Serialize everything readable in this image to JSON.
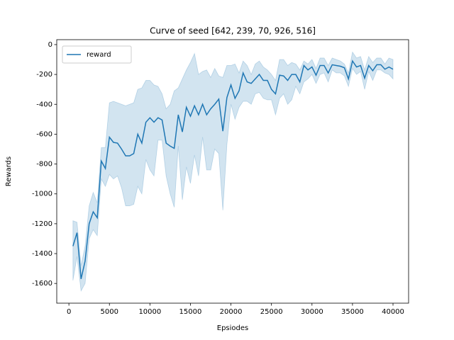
{
  "chart_data": {
    "type": "line",
    "title": "Curve of seed [642, 239, 70, 926, 516]",
    "xlabel": "Epsiodes",
    "ylabel": "Rewards",
    "x": [
      500,
      1000,
      1500,
      2000,
      2500,
      3000,
      3500,
      4000,
      4500,
      5000,
      5500,
      6000,
      6500,
      7000,
      7500,
      8000,
      8500,
      9000,
      9500,
      10000,
      10500,
      11000,
      11500,
      12000,
      12500,
      13000,
      13500,
      14000,
      14500,
      15000,
      15500,
      16000,
      16500,
      17000,
      17500,
      18000,
      18500,
      19000,
      19500,
      20000,
      20500,
      21000,
      21500,
      22000,
      22500,
      23000,
      23500,
      24000,
      24500,
      25000,
      25500,
      26000,
      26500,
      27000,
      27500,
      28000,
      28500,
      29000,
      29500,
      30000,
      30500,
      31000,
      31500,
      32000,
      32500,
      33000,
      33500,
      34000,
      34500,
      35000,
      35500,
      36000,
      36500,
      37000,
      37500,
      38000,
      38500,
      39000,
      39500,
      40000
    ],
    "series": [
      {
        "name": "reward",
        "color": "#1f77b4",
        "values": [
          -1350,
          -1260,
          -1570,
          -1450,
          -1200,
          -1120,
          -1160,
          -780,
          -830,
          -620,
          -655,
          -660,
          -700,
          -745,
          -745,
          -730,
          -600,
          -660,
          -520,
          -490,
          -520,
          -490,
          -505,
          -660,
          -680,
          -695,
          -470,
          -585,
          -420,
          -480,
          -410,
          -470,
          -400,
          -470,
          -430,
          -400,
          -365,
          -580,
          -355,
          -270,
          -360,
          -310,
          -190,
          -250,
          -260,
          -230,
          -200,
          -240,
          -240,
          -300,
          -330,
          -205,
          -210,
          -240,
          -200,
          -200,
          -250,
          -140,
          -170,
          -150,
          -205,
          -140,
          -140,
          -190,
          -135,
          -140,
          -145,
          -155,
          -230,
          -110,
          -150,
          -140,
          -225,
          -140,
          -175,
          -135,
          -135,
          -165,
          -150,
          -165
        ],
        "lower": [
          -1580,
          -1420,
          -1650,
          -1600,
          -1300,
          -1240,
          -1280,
          -900,
          -950,
          -870,
          -900,
          -880,
          -960,
          -1080,
          -1080,
          -1070,
          -950,
          -1000,
          -770,
          -840,
          -880,
          -640,
          -640,
          -880,
          -1000,
          -1090,
          -680,
          -1040,
          -820,
          -930,
          -740,
          -880,
          -620,
          -840,
          -840,
          -700,
          -730,
          -1110,
          -670,
          -400,
          -500,
          -420,
          -380,
          -380,
          -400,
          -330,
          -320,
          -360,
          -370,
          -370,
          -470,
          -360,
          -330,
          -400,
          -370,
          -280,
          -330,
          -250,
          -230,
          -200,
          -260,
          -200,
          -190,
          -250,
          -170,
          -190,
          -190,
          -210,
          -280,
          -160,
          -200,
          -180,
          -300,
          -180,
          -240,
          -170,
          -170,
          -190,
          -200,
          -230
        ],
        "upper": [
          -1180,
          -1190,
          -1480,
          -1350,
          -1080,
          -990,
          -1060,
          -690,
          -690,
          -390,
          -380,
          -390,
          -400,
          -410,
          -400,
          -390,
          -300,
          -290,
          -240,
          -240,
          -270,
          -280,
          -330,
          -430,
          -400,
          -310,
          -290,
          -230,
          -170,
          -120,
          -60,
          -200,
          -180,
          -170,
          -220,
          -160,
          -210,
          -220,
          -140,
          -140,
          -130,
          -190,
          -110,
          -140,
          -200,
          -130,
          -110,
          -150,
          -170,
          -200,
          -240,
          -100,
          -100,
          -140,
          -120,
          -130,
          -170,
          -110,
          -130,
          -100,
          -160,
          -90,
          -90,
          -140,
          -90,
          -100,
          -110,
          -130,
          -190,
          -50,
          -90,
          -80,
          -170,
          -80,
          -120,
          -90,
          -90,
          -130,
          -90,
          -100
        ]
      }
    ],
    "xlim": [
      -1500,
      41925
    ],
    "ylim": [
      -1732,
      33
    ],
    "xticks": [
      0,
      5000,
      10000,
      15000,
      20000,
      25000,
      30000,
      35000,
      40000
    ],
    "yticks": [
      -1600,
      -1400,
      -1200,
      -1000,
      -800,
      -600,
      -400,
      -200,
      0
    ],
    "legend": "upper left"
  }
}
